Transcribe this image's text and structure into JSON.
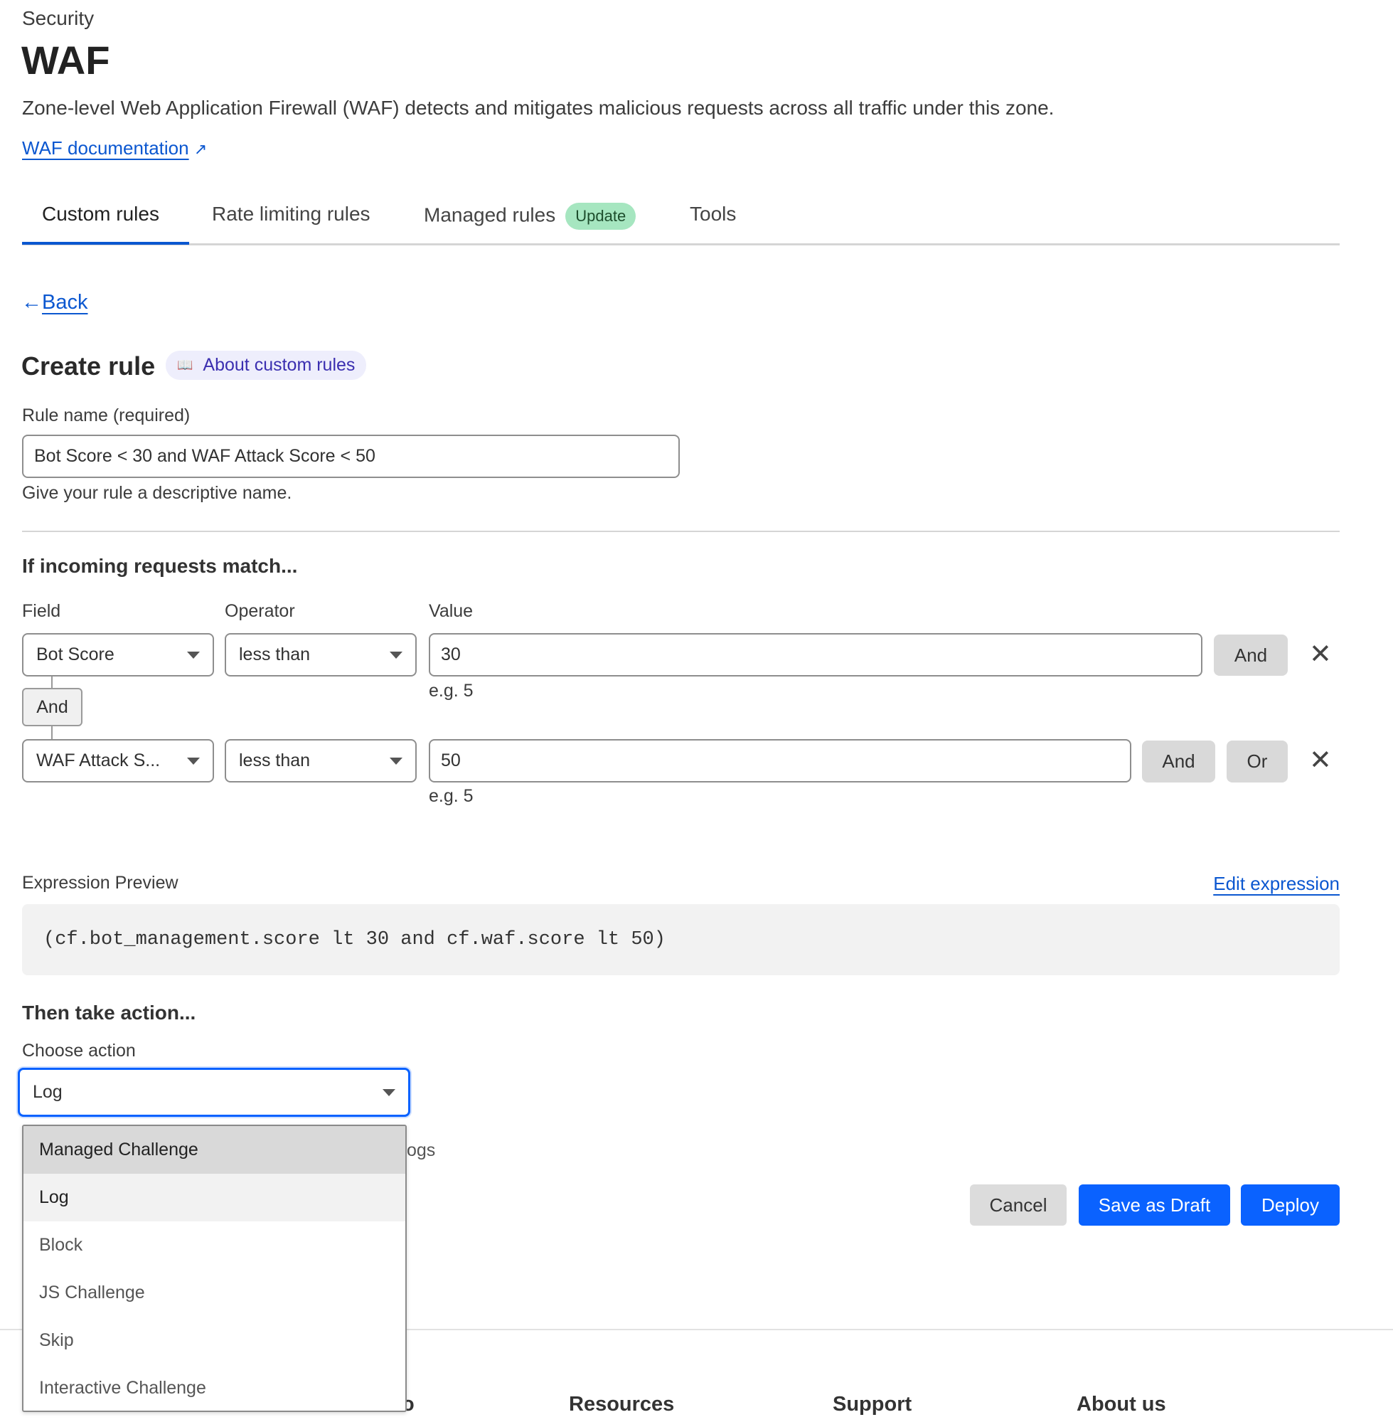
{
  "header": {
    "section": "Security",
    "title": "WAF",
    "description": "Zone-level Web Application Firewall (WAF) detects and mitigates malicious requests across all traffic under this zone.",
    "doc_link": "WAF documentation"
  },
  "tabs": [
    {
      "label": "Custom rules",
      "active": true
    },
    {
      "label": "Rate limiting rules"
    },
    {
      "label": "Managed rules",
      "badge": "Update"
    },
    {
      "label": "Tools"
    }
  ],
  "back": "Back",
  "create": {
    "title": "Create rule",
    "about": "About custom rules"
  },
  "rule_name": {
    "label": "Rule name (required)",
    "value": "Bot Score < 30 and WAF Attack Score < 50",
    "help": "Give your rule a descriptive name."
  },
  "match": {
    "heading": "If incoming requests match...",
    "col_field": "Field",
    "col_operator": "Operator",
    "col_value": "Value",
    "rows": [
      {
        "field": "Bot Score",
        "operator": "less than",
        "value": "30",
        "hint": "e.g. 5",
        "and": "And"
      },
      {
        "field": "WAF Attack S...",
        "operator": "less than",
        "value": "50",
        "hint": "e.g. 5",
        "and": "And",
        "or": "Or"
      }
    ],
    "connector": "And"
  },
  "expression": {
    "label": "Expression Preview",
    "edit": "Edit expression",
    "code": "(cf.bot_management.score lt 30 and cf.waf.score lt 50)"
  },
  "action": {
    "heading": "Then take action...",
    "label": "Choose action",
    "value": "Log",
    "behind_text": "ogs",
    "options": [
      "Managed Challenge",
      "Log",
      "Block",
      "JS Challenge",
      "Skip",
      "Interactive Challenge"
    ],
    "hovered": "Managed Challenge",
    "selected": "Log"
  },
  "buttons": {
    "cancel": "Cancel",
    "draft": "Save as Draft",
    "deploy": "Deploy"
  },
  "footer": {
    "partial": "o",
    "resources": "Resources",
    "support": "Support",
    "about": "About us"
  },
  "colors": {
    "accent": "#0a62ff",
    "link": "#0b57d0",
    "badge": "#a6e6c0"
  }
}
